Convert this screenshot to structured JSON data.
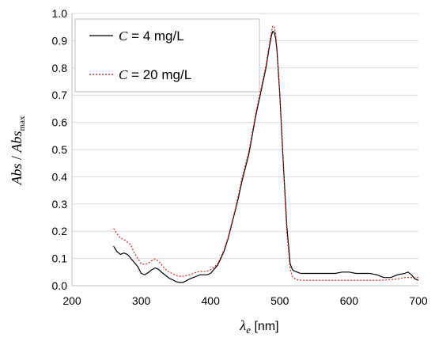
{
  "chart_data": {
    "type": "line",
    "xlabel": {
      "symbol": "λ",
      "subscript": "e",
      "unit": " [nm]"
    },
    "ylabel": {
      "part1": "Abs",
      "slash": " / ",
      "part2": "Abs",
      "subscript": "max"
    },
    "xlim": [
      200,
      700
    ],
    "ylim": [
      0,
      1.0
    ],
    "xticks": [
      200,
      300,
      400,
      500,
      600,
      700
    ],
    "yticks": [
      0.0,
      0.1,
      0.2,
      0.3,
      0.4,
      0.5,
      0.6,
      0.7,
      0.8,
      0.9,
      1.0
    ],
    "grid": "horizontal",
    "legend": "top-left",
    "series": [
      {
        "name": "C = 4 mg/L",
        "legend_symbol": "C",
        "legend_rest": " = 4 mg/L",
        "color": "#000000",
        "dash": "solid",
        "x": [
          260,
          265,
          270,
          275,
          280,
          285,
          290,
          295,
          300,
          305,
          310,
          315,
          320,
          325,
          330,
          335,
          340,
          345,
          350,
          355,
          360,
          365,
          370,
          375,
          380,
          385,
          390,
          395,
          400,
          405,
          410,
          415,
          420,
          425,
          430,
          435,
          440,
          445,
          450,
          455,
          460,
          465,
          470,
          475,
          480,
          485,
          488,
          490,
          492,
          494,
          496,
          500,
          505,
          510,
          515,
          518,
          520,
          525,
          530,
          540,
          550,
          560,
          570,
          580,
          590,
          600,
          610,
          620,
          630,
          640,
          650,
          660,
          670,
          680,
          685,
          690,
          695,
          700
        ],
        "y": [
          0.145,
          0.125,
          0.115,
          0.12,
          0.115,
          0.1,
          0.085,
          0.07,
          0.045,
          0.04,
          0.048,
          0.058,
          0.065,
          0.06,
          0.048,
          0.038,
          0.028,
          0.022,
          0.015,
          0.012,
          0.012,
          0.018,
          0.025,
          0.03,
          0.035,
          0.04,
          0.04,
          0.04,
          0.045,
          0.06,
          0.075,
          0.1,
          0.13,
          0.17,
          0.22,
          0.27,
          0.32,
          0.38,
          0.43,
          0.48,
          0.55,
          0.62,
          0.68,
          0.74,
          0.8,
          0.88,
          0.92,
          0.935,
          0.93,
          0.91,
          0.86,
          0.7,
          0.45,
          0.22,
          0.08,
          0.06,
          0.055,
          0.05,
          0.045,
          0.045,
          0.045,
          0.045,
          0.045,
          0.045,
          0.05,
          0.05,
          0.045,
          0.045,
          0.045,
          0.04,
          0.03,
          0.03,
          0.04,
          0.045,
          0.05,
          0.04,
          0.025,
          0.02
        ]
      },
      {
        "name": "C = 20 mg/L",
        "legend_symbol": "C",
        "legend_rest": " = 20 mg/L",
        "color": "#cc2222",
        "dash": "dotted",
        "x": [
          260,
          265,
          270,
          275,
          280,
          285,
          290,
          295,
          300,
          305,
          310,
          315,
          320,
          325,
          330,
          335,
          340,
          345,
          350,
          355,
          360,
          365,
          370,
          375,
          380,
          385,
          390,
          395,
          400,
          405,
          410,
          415,
          420,
          425,
          430,
          435,
          440,
          445,
          450,
          455,
          460,
          465,
          470,
          475,
          480,
          485,
          488,
          490,
          492,
          494,
          496,
          500,
          505,
          510,
          515,
          518,
          520,
          525,
          530,
          540,
          550,
          560,
          570,
          580,
          590,
          600,
          610,
          620,
          630,
          640,
          650,
          660,
          670,
          680,
          690,
          700
        ],
        "y": [
          0.21,
          0.19,
          0.175,
          0.17,
          0.16,
          0.15,
          0.12,
          0.1,
          0.08,
          0.078,
          0.082,
          0.092,
          0.098,
          0.09,
          0.075,
          0.06,
          0.05,
          0.045,
          0.038,
          0.035,
          0.035,
          0.037,
          0.04,
          0.045,
          0.05,
          0.052,
          0.052,
          0.053,
          0.058,
          0.068,
          0.08,
          0.105,
          0.135,
          0.175,
          0.225,
          0.275,
          0.33,
          0.39,
          0.44,
          0.49,
          0.56,
          0.63,
          0.69,
          0.75,
          0.81,
          0.89,
          0.935,
          0.955,
          0.95,
          0.925,
          0.87,
          0.7,
          0.44,
          0.2,
          0.06,
          0.035,
          0.028,
          0.022,
          0.02,
          0.02,
          0.02,
          0.02,
          0.02,
          0.02,
          0.02,
          0.02,
          0.02,
          0.02,
          0.02,
          0.02,
          0.02,
          0.022,
          0.025,
          0.03,
          0.03,
          0.03
        ]
      }
    ]
  }
}
